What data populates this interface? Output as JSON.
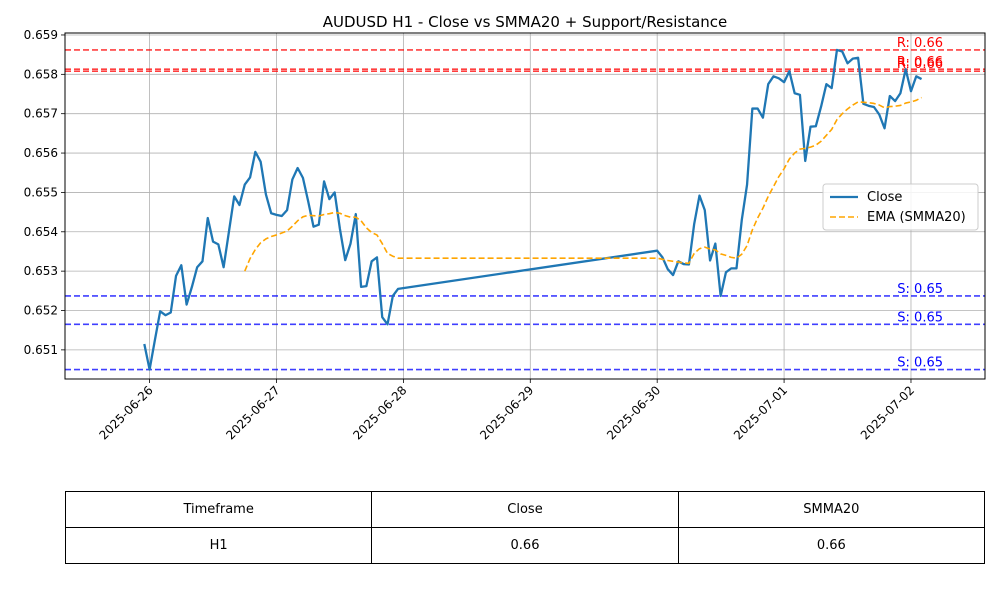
{
  "chart_data": {
    "type": "line",
    "title": "AUDUSD H1 - Close vs SMMA20 + Support/Resistance",
    "xlabel": "",
    "ylabel": "",
    "x_ticks": [
      "2025-06-26",
      "2025-06-27",
      "2025-06-28",
      "2025-06-29",
      "2025-06-30",
      "2025-07-01",
      "2025-07-02"
    ],
    "y_ticks": [
      "0.651",
      "0.652",
      "0.653",
      "0.654",
      "0.655",
      "0.656",
      "0.657",
      "0.658",
      "0.659"
    ],
    "ylim": [
      0.65026,
      0.65905
    ],
    "xlim": [
      "2025-06-25T08:00",
      "2025-07-02T14:00"
    ],
    "grid": true,
    "legend": "center-right",
    "series": [
      {
        "name": "Close",
        "color": "#1f77b4",
        "style": "solid",
        "points": [
          [
            "2025-06-25T23:00",
            0.65115
          ],
          [
            "2025-06-26T00:00",
            0.6505
          ],
          [
            "2025-06-26T01:00",
            0.65125
          ],
          [
            "2025-06-26T02:00",
            0.65198
          ],
          [
            "2025-06-26T03:00",
            0.65188
          ],
          [
            "2025-06-26T04:00",
            0.65195
          ],
          [
            "2025-06-26T05:00",
            0.65288
          ],
          [
            "2025-06-26T06:00",
            0.65315
          ],
          [
            "2025-06-26T07:00",
            0.65215
          ],
          [
            "2025-06-26T08:00",
            0.6526
          ],
          [
            "2025-06-26T09:00",
            0.6531
          ],
          [
            "2025-06-26T10:00",
            0.65325
          ],
          [
            "2025-06-26T11:00",
            0.65435
          ],
          [
            "2025-06-26T12:00",
            0.65375
          ],
          [
            "2025-06-26T13:00",
            0.65368
          ],
          [
            "2025-06-26T14:00",
            0.6531
          ],
          [
            "2025-06-26T15:00",
            0.654
          ],
          [
            "2025-06-26T16:00",
            0.6549
          ],
          [
            "2025-06-26T17:00",
            0.65468
          ],
          [
            "2025-06-26T18:00",
            0.6552
          ],
          [
            "2025-06-26T19:00",
            0.65538
          ],
          [
            "2025-06-26T20:00",
            0.65603
          ],
          [
            "2025-06-26T21:00",
            0.65578
          ],
          [
            "2025-06-26T22:00",
            0.65495
          ],
          [
            "2025-06-26T23:00",
            0.65447
          ],
          [
            "2025-06-27T00:00",
            0.65443
          ],
          [
            "2025-06-27T01:00",
            0.6544
          ],
          [
            "2025-06-27T02:00",
            0.65455
          ],
          [
            "2025-06-27T03:00",
            0.65533
          ],
          [
            "2025-06-27T04:00",
            0.65562
          ],
          [
            "2025-06-27T05:00",
            0.65537
          ],
          [
            "2025-06-27T06:00",
            0.65477
          ],
          [
            "2025-06-27T07:00",
            0.65413
          ],
          [
            "2025-06-27T08:00",
            0.65418
          ],
          [
            "2025-06-27T09:00",
            0.65528
          ],
          [
            "2025-06-27T10:00",
            0.65483
          ],
          [
            "2025-06-27T11:00",
            0.655
          ],
          [
            "2025-06-27T12:00",
            0.65407
          ],
          [
            "2025-06-27T13:00",
            0.65328
          ],
          [
            "2025-06-27T14:00",
            0.6537
          ],
          [
            "2025-06-27T15:00",
            0.65445
          ],
          [
            "2025-06-27T16:00",
            0.6526
          ],
          [
            "2025-06-27T17:00",
            0.65262
          ],
          [
            "2025-06-27T18:00",
            0.65325
          ],
          [
            "2025-06-27T19:00",
            0.65335
          ],
          [
            "2025-06-27T20:00",
            0.65183
          ],
          [
            "2025-06-27T21:00",
            0.65165
          ],
          [
            "2025-06-27T22:00",
            0.65237
          ],
          [
            "2025-06-27T23:00",
            0.65255
          ],
          [
            "2025-06-30T00:00",
            0.65352
          ],
          [
            "2025-06-30T01:00",
            0.65335
          ],
          [
            "2025-06-30T02:00",
            0.65305
          ],
          [
            "2025-06-30T03:00",
            0.6529
          ],
          [
            "2025-06-30T04:00",
            0.65325
          ],
          [
            "2025-06-30T05:00",
            0.65318
          ],
          [
            "2025-06-30T06:00",
            0.65317
          ],
          [
            "2025-06-30T07:00",
            0.6542
          ],
          [
            "2025-06-30T08:00",
            0.65492
          ],
          [
            "2025-06-30T09:00",
            0.65455
          ],
          [
            "2025-06-30T10:00",
            0.65327
          ],
          [
            "2025-06-30T11:00",
            0.6537
          ],
          [
            "2025-06-30T12:00",
            0.65237
          ],
          [
            "2025-06-30T13:00",
            0.65297
          ],
          [
            "2025-06-30T14:00",
            0.65307
          ],
          [
            "2025-06-30T15:00",
            0.65307
          ],
          [
            "2025-06-30T16:00",
            0.6543
          ],
          [
            "2025-06-30T17:00",
            0.6552
          ],
          [
            "2025-06-30T18:00",
            0.65713
          ],
          [
            "2025-06-30T19:00",
            0.65713
          ],
          [
            "2025-06-30T20:00",
            0.6569
          ],
          [
            "2025-06-30T21:00",
            0.65775
          ],
          [
            "2025-06-30T22:00",
            0.65795
          ],
          [
            "2025-06-30T23:00",
            0.6579
          ],
          [
            "2025-07-01T00:00",
            0.6578
          ],
          [
            "2025-07-01T01:00",
            0.65808
          ],
          [
            "2025-07-01T02:00",
            0.65752
          ],
          [
            "2025-07-01T03:00",
            0.65748
          ],
          [
            "2025-07-01T04:00",
            0.6558
          ],
          [
            "2025-07-01T05:00",
            0.65667
          ],
          [
            "2025-07-01T06:00",
            0.65668
          ],
          [
            "2025-07-01T07:00",
            0.65718
          ],
          [
            "2025-07-01T08:00",
            0.65775
          ],
          [
            "2025-07-01T09:00",
            0.65765
          ],
          [
            "2025-07-01T10:00",
            0.65862
          ],
          [
            "2025-07-01T11:00",
            0.65858
          ],
          [
            "2025-07-01T12:00",
            0.65828
          ],
          [
            "2025-07-01T13:00",
            0.6584
          ],
          [
            "2025-07-01T14:00",
            0.65842
          ],
          [
            "2025-07-01T15:00",
            0.65725
          ],
          [
            "2025-07-01T16:00",
            0.6572
          ],
          [
            "2025-07-01T17:00",
            0.65717
          ],
          [
            "2025-07-01T18:00",
            0.65698
          ],
          [
            "2025-07-01T19:00",
            0.65663
          ],
          [
            "2025-07-01T20:00",
            0.65745
          ],
          [
            "2025-07-01T21:00",
            0.65732
          ],
          [
            "2025-07-01T22:00",
            0.65752
          ],
          [
            "2025-07-01T23:00",
            0.65813
          ],
          [
            "2025-07-02T00:00",
            0.65757
          ],
          [
            "2025-07-02T01:00",
            0.65795
          ],
          [
            "2025-07-02T02:00",
            0.65788
          ]
        ]
      },
      {
        "name": "EMA (SMMA20)",
        "color": "#ffa500",
        "style": "dashed",
        "points": [
          [
            "2025-06-26T18:00",
            0.653
          ],
          [
            "2025-06-26T19:00",
            0.65332
          ],
          [
            "2025-06-26T20:00",
            0.65355
          ],
          [
            "2025-06-26T21:00",
            0.65372
          ],
          [
            "2025-06-26T22:00",
            0.65382
          ],
          [
            "2025-06-26T23:00",
            0.65388
          ],
          [
            "2025-06-27T00:00",
            0.65392
          ],
          [
            "2025-06-27T01:00",
            0.65397
          ],
          [
            "2025-06-27T02:00",
            0.65402
          ],
          [
            "2025-06-27T03:00",
            0.65414
          ],
          [
            "2025-06-27T04:00",
            0.65428
          ],
          [
            "2025-06-27T05:00",
            0.65438
          ],
          [
            "2025-06-27T06:00",
            0.65442
          ],
          [
            "2025-06-27T07:00",
            0.65441
          ],
          [
            "2025-06-27T08:00",
            0.6544
          ],
          [
            "2025-06-27T09:00",
            0.65444
          ],
          [
            "2025-06-27T10:00",
            0.65446
          ],
          [
            "2025-06-27T11:00",
            0.65449
          ],
          [
            "2025-06-27T12:00",
            0.65447
          ],
          [
            "2025-06-27T13:00",
            0.65441
          ],
          [
            "2025-06-27T14:00",
            0.65437
          ],
          [
            "2025-06-27T15:00",
            0.65437
          ],
          [
            "2025-06-27T16:00",
            0.65428
          ],
          [
            "2025-06-27T17:00",
            0.6541
          ],
          [
            "2025-06-27T18:00",
            0.65398
          ],
          [
            "2025-06-27T19:00",
            0.65392
          ],
          [
            "2025-06-27T20:00",
            0.6537
          ],
          [
            "2025-06-27T21:00",
            0.65345
          ],
          [
            "2025-06-27T22:00",
            0.65338
          ],
          [
            "2025-06-27T23:00",
            0.65333
          ],
          [
            "2025-06-30T00:00",
            0.65333
          ],
          [
            "2025-06-30T01:00",
            0.6533
          ],
          [
            "2025-06-30T02:00",
            0.65327
          ],
          [
            "2025-06-30T03:00",
            0.65325
          ],
          [
            "2025-06-30T04:00",
            0.65323
          ],
          [
            "2025-06-30T05:00",
            0.65321
          ],
          [
            "2025-06-30T06:00",
            0.6532
          ],
          [
            "2025-06-30T07:00",
            0.65345
          ],
          [
            "2025-06-30T08:00",
            0.65357
          ],
          [
            "2025-06-30T09:00",
            0.65361
          ],
          [
            "2025-06-30T10:00",
            0.65356
          ],
          [
            "2025-06-30T11:00",
            0.65354
          ],
          [
            "2025-06-30T12:00",
            0.65344
          ],
          [
            "2025-06-30T13:00",
            0.6534
          ],
          [
            "2025-06-30T14:00",
            0.65335
          ],
          [
            "2025-06-30T15:00",
            0.65333
          ],
          [
            "2025-06-30T16:00",
            0.65343
          ],
          [
            "2025-06-30T17:00",
            0.65365
          ],
          [
            "2025-06-30T18:00",
            0.65405
          ],
          [
            "2025-06-30T19:00",
            0.65435
          ],
          [
            "2025-06-30T20:00",
            0.6546
          ],
          [
            "2025-06-30T21:00",
            0.6549
          ],
          [
            "2025-06-30T22:00",
            0.65515
          ],
          [
            "2025-06-30T23:00",
            0.6554
          ],
          [
            "2025-07-01T00:00",
            0.6556
          ],
          [
            "2025-07-01T01:00",
            0.65585
          ],
          [
            "2025-07-01T02:00",
            0.656
          ],
          [
            "2025-07-01T03:00",
            0.6561
          ],
          [
            "2025-07-01T04:00",
            0.65612
          ],
          [
            "2025-07-01T05:00",
            0.65615
          ],
          [
            "2025-07-01T06:00",
            0.6562
          ],
          [
            "2025-07-01T07:00",
            0.6563
          ],
          [
            "2025-07-01T08:00",
            0.65645
          ],
          [
            "2025-07-01T09:00",
            0.6566
          ],
          [
            "2025-07-01T10:00",
            0.65685
          ],
          [
            "2025-07-01T11:00",
            0.657
          ],
          [
            "2025-07-01T12:00",
            0.65712
          ],
          [
            "2025-07-01T13:00",
            0.65722
          ],
          [
            "2025-07-01T14:00",
            0.6573
          ],
          [
            "2025-07-01T15:00",
            0.65729
          ],
          [
            "2025-07-01T16:00",
            0.65728
          ],
          [
            "2025-07-01T17:00",
            0.65726
          ],
          [
            "2025-07-01T18:00",
            0.65722
          ],
          [
            "2025-07-01T19:00",
            0.65715
          ],
          [
            "2025-07-01T20:00",
            0.65718
          ],
          [
            "2025-07-01T21:00",
            0.65719
          ],
          [
            "2025-07-01T22:00",
            0.65721
          ],
          [
            "2025-07-01T23:00",
            0.65727
          ],
          [
            "2025-07-02T00:00",
            0.6573
          ],
          [
            "2025-07-02T01:00",
            0.65734
          ],
          [
            "2025-07-02T02:00",
            0.65741
          ]
        ]
      }
    ],
    "resistance_levels": [
      {
        "value": 0.65862,
        "label": "R: 0.66"
      },
      {
        "value": 0.65813,
        "label": "R: 0.66"
      },
      {
        "value": 0.65808,
        "label": "R: 0.66"
      }
    ],
    "support_levels": [
      {
        "value": 0.65237,
        "label": "S: 0.65"
      },
      {
        "value": 0.65165,
        "label": "S: 0.65"
      },
      {
        "value": 0.6505,
        "label": "S: 0.65"
      }
    ],
    "resistance_color": "#ff0000",
    "support_color": "#0000ff"
  },
  "table": {
    "headers": [
      "Timeframe",
      "Close",
      "SMMA20"
    ],
    "row": [
      "H1",
      "0.66",
      "0.66"
    ]
  }
}
